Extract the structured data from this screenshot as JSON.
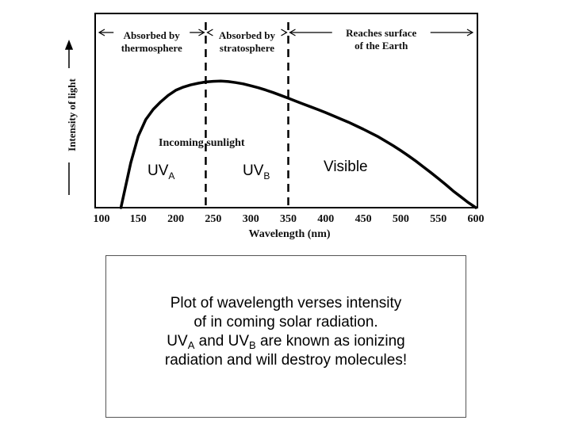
{
  "chart_data": {
    "type": "line",
    "title": "",
    "xlabel": "Wavelength (nm)",
    "ylabel": "Intensity of light",
    "xlim": [
      100,
      600
    ],
    "x_ticks": [
      "100",
      "150",
      "200",
      "250",
      "300",
      "350",
      "400",
      "450",
      "500",
      "550",
      "600"
    ],
    "grid": false,
    "series": [
      {
        "name": "Incoming sunlight",
        "x": [
          127,
          140,
          150,
          160,
          170,
          180,
          190,
          200,
          210,
          220,
          230,
          240,
          250,
          260,
          270,
          280,
          290,
          300,
          310,
          320,
          330,
          340,
          350,
          360,
          370,
          380,
          390,
          400,
          410,
          420,
          430,
          440,
          450,
          460,
          470,
          480,
          490,
          500,
          510,
          520,
          530,
          540,
          550,
          560,
          570,
          580,
          590,
          600
        ],
        "y": [
          0.0,
          0.35,
          0.56,
          0.69,
          0.77,
          0.83,
          0.88,
          0.92,
          0.945,
          0.962,
          0.975,
          0.985,
          0.99,
          0.992,
          0.988,
          0.98,
          0.97,
          0.955,
          0.94,
          0.922,
          0.902,
          0.88,
          0.858,
          0.835,
          0.812,
          0.79,
          0.768,
          0.745,
          0.72,
          0.695,
          0.67,
          0.643,
          0.615,
          0.585,
          0.555,
          0.52,
          0.485,
          0.447,
          0.407,
          0.365,
          0.32,
          0.275,
          0.228,
          0.18,
          0.13,
          0.085,
          0.04,
          0.0
        ]
      }
    ],
    "boundaries_nm": [
      240,
      350
    ],
    "regions": [
      {
        "label": "Absorbed by thermosphere",
        "line1": "Absorbed by",
        "line2": "thermosphere",
        "from": 100,
        "to": 240
      },
      {
        "label": "Absorbed by stratosphere",
        "line1": "Absorbed by",
        "line2": "stratosphere",
        "from": 240,
        "to": 350
      },
      {
        "label": "Reaches surface of the Earth",
        "line1": "Reaches surface",
        "line2": "of the Earth",
        "from": 350,
        "to": 600
      }
    ],
    "annotations": {
      "curve_label": "Incoming sunlight",
      "uva": {
        "base": "UV",
        "sub": "A"
      },
      "uvb": {
        "base": "UV",
        "sub": "B"
      },
      "visible": "Visible"
    }
  },
  "caption": {
    "line1": "Plot of wavelength verses intensity",
    "line2": "of in coming solar radiation.",
    "line3_uva": "UV",
    "line3_uva_sub": "A",
    "line3_mid": " and UV",
    "line3_uvb_sub": "B",
    "line3_end": " are known as ionizing",
    "line4": "radiation and will destroy molecules!"
  }
}
